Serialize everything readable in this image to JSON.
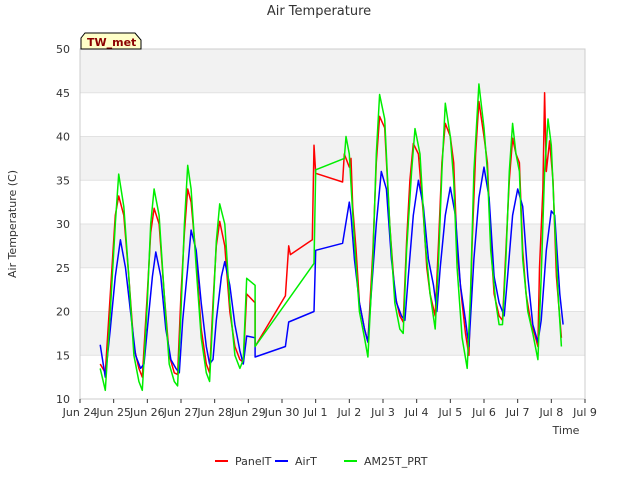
{
  "chart_data": {
    "type": "line",
    "title": "Air Temperature",
    "xlabel": "Time",
    "ylabel": "Air Temperature (C)",
    "badge": "TW_met",
    "ylim": [
      10,
      50
    ],
    "yticks": [
      10,
      15,
      20,
      25,
      30,
      35,
      40,
      45,
      50
    ],
    "xlim": [
      0,
      15
    ],
    "xticks": [
      {
        "v": 0,
        "label": "Jun 24"
      },
      {
        "v": 1,
        "label": "Jun 25"
      },
      {
        "v": 2,
        "label": "Jun 26"
      },
      {
        "v": 3,
        "label": "Jun 27"
      },
      {
        "v": 4,
        "label": "Jun 28"
      },
      {
        "v": 5,
        "label": "Jun 29"
      },
      {
        "v": 6,
        "label": "Jun 30"
      },
      {
        "v": 7,
        "label": "Jul 1"
      },
      {
        "v": 8,
        "label": "Jul 2"
      },
      {
        "v": 9,
        "label": "Jul 3"
      },
      {
        "v": 10,
        "label": "Jul 4"
      },
      {
        "v": 11,
        "label": "Jul 5"
      },
      {
        "v": 12,
        "label": "Jul 6"
      },
      {
        "v": 13,
        "label": "Jul 7"
      },
      {
        "v": 14,
        "label": "Jul 8"
      },
      {
        "v": 15,
        "label": "Jul 9"
      }
    ],
    "grid": true,
    "legend_position": "bottom",
    "colors": {
      "PanelT": "#ff0000",
      "AirT": "#0000ff",
      "AM25T_PRT": "#00ee00"
    },
    "series": [
      {
        "name": "PanelT",
        "points": [
          [
            0.6,
            14.0
          ],
          [
            0.75,
            13.0
          ],
          [
            0.9,
            22.0
          ],
          [
            1.05,
            31.0
          ],
          [
            1.15,
            33.2
          ],
          [
            1.3,
            31.0
          ],
          [
            1.45,
            24.0
          ],
          [
            1.6,
            16.0
          ],
          [
            1.75,
            13.5
          ],
          [
            1.85,
            12.5
          ],
          [
            2.0,
            22.0
          ],
          [
            2.1,
            29.0
          ],
          [
            2.2,
            31.8
          ],
          [
            2.35,
            30.0
          ],
          [
            2.5,
            22.0
          ],
          [
            2.65,
            15.0
          ],
          [
            2.8,
            13.0
          ],
          [
            2.9,
            12.8
          ],
          [
            3.0,
            22.0
          ],
          [
            3.1,
            29.0
          ],
          [
            3.2,
            34.0
          ],
          [
            3.3,
            32.5
          ],
          [
            3.45,
            26.0
          ],
          [
            3.6,
            18.0
          ],
          [
            3.75,
            14.0
          ],
          [
            3.85,
            13.0
          ],
          [
            3.95,
            21.0
          ],
          [
            4.05,
            27.5
          ],
          [
            4.15,
            30.3
          ],
          [
            4.3,
            27.5
          ],
          [
            4.45,
            20.0
          ],
          [
            4.6,
            16.0
          ],
          [
            4.75,
            14.5
          ],
          [
            4.85,
            14.2
          ],
          [
            4.95,
            22.0
          ],
          [
            5.2,
            21.0
          ],
          [
            5.2,
            16.0
          ],
          [
            6.1,
            21.8
          ],
          [
            6.2,
            27.5
          ],
          [
            6.25,
            26.5
          ],
          [
            6.9,
            28.2
          ],
          [
            6.95,
            39.0
          ],
          [
            7.0,
            35.8
          ],
          [
            7.8,
            34.8
          ],
          [
            7.85,
            38.0
          ],
          [
            8.0,
            36.5
          ],
          [
            8.05,
            37.5
          ],
          [
            8.1,
            32.0
          ],
          [
            8.2,
            27.0
          ],
          [
            8.3,
            21.0
          ],
          [
            8.45,
            18.0
          ],
          [
            8.55,
            16.5
          ],
          [
            8.7,
            27.0
          ],
          [
            8.8,
            37.0
          ],
          [
            8.9,
            42.3
          ],
          [
            9.05,
            41.0
          ],
          [
            9.2,
            30.0
          ],
          [
            9.35,
            22.0
          ],
          [
            9.5,
            19.5
          ],
          [
            9.6,
            18.8
          ],
          [
            9.7,
            28.0
          ],
          [
            9.8,
            35.0
          ],
          [
            9.9,
            39.2
          ],
          [
            10.05,
            38.0
          ],
          [
            10.2,
            31.0
          ],
          [
            10.3,
            25.0
          ],
          [
            10.4,
            22.0
          ],
          [
            10.55,
            19.5
          ],
          [
            10.65,
            28.0
          ],
          [
            10.75,
            37.0
          ],
          [
            10.85,
            41.5
          ],
          [
            11.0,
            40.0
          ],
          [
            11.1,
            37.0
          ],
          [
            11.2,
            27.0
          ],
          [
            11.35,
            21.0
          ],
          [
            11.45,
            17.5
          ],
          [
            11.55,
            15.0
          ],
          [
            11.65,
            28.0
          ],
          [
            11.75,
            38.0
          ],
          [
            11.85,
            44.0
          ],
          [
            12.0,
            40.0
          ],
          [
            12.1,
            37.0
          ],
          [
            12.2,
            28.0
          ],
          [
            12.3,
            22.0
          ],
          [
            12.45,
            19.5
          ],
          [
            12.55,
            19.0
          ],
          [
            12.65,
            27.0
          ],
          [
            12.75,
            35.0
          ],
          [
            12.85,
            39.8
          ],
          [
            12.95,
            38.0
          ],
          [
            13.05,
            37.0
          ],
          [
            13.15,
            27.0
          ],
          [
            13.25,
            22.0
          ],
          [
            13.4,
            18.5
          ],
          [
            13.5,
            17.5
          ],
          [
            13.6,
            16.0
          ],
          [
            13.65,
            25.0
          ],
          [
            13.75,
            34.0
          ],
          [
            13.8,
            45.0
          ],
          [
            13.85,
            36.0
          ],
          [
            13.95,
            39.5
          ],
          [
            14.05,
            35.0
          ],
          [
            14.15,
            24.0
          ],
          [
            14.3,
            17.0
          ]
        ]
      },
      {
        "name": "AirT",
        "points": [
          [
            0.6,
            16.2
          ],
          [
            0.75,
            12.5
          ],
          [
            0.9,
            18.0
          ],
          [
            1.05,
            24.0
          ],
          [
            1.2,
            28.2
          ],
          [
            1.35,
            25.0
          ],
          [
            1.5,
            20.0
          ],
          [
            1.65,
            15.0
          ],
          [
            1.8,
            13.5
          ],
          [
            1.9,
            14.0
          ],
          [
            2.05,
            20.0
          ],
          [
            2.15,
            24.0
          ],
          [
            2.25,
            26.8
          ],
          [
            2.4,
            24.0
          ],
          [
            2.55,
            18.0
          ],
          [
            2.7,
            14.5
          ],
          [
            2.85,
            13.5
          ],
          [
            2.95,
            13.0
          ],
          [
            3.05,
            19.0
          ],
          [
            3.2,
            25.0
          ],
          [
            3.3,
            29.3
          ],
          [
            3.45,
            27.0
          ],
          [
            3.6,
            21.0
          ],
          [
            3.75,
            16.0
          ],
          [
            3.85,
            14.0
          ],
          [
            3.95,
            14.5
          ],
          [
            4.05,
            19.0
          ],
          [
            4.2,
            24.0
          ],
          [
            4.3,
            25.7
          ],
          [
            4.45,
            23.0
          ],
          [
            4.6,
            18.5
          ],
          [
            4.75,
            15.5
          ],
          [
            4.85,
            14.0
          ],
          [
            4.95,
            17.2
          ],
          [
            5.2,
            17.0
          ],
          [
            5.2,
            14.8
          ],
          [
            6.1,
            16.0
          ],
          [
            6.2,
            18.8
          ],
          [
            6.95,
            20.0
          ],
          [
            7.0,
            27.0
          ],
          [
            7.8,
            27.8
          ],
          [
            7.85,
            29.0
          ],
          [
            8.0,
            32.5
          ],
          [
            8.05,
            31.0
          ],
          [
            8.15,
            26.0
          ],
          [
            8.3,
            21.0
          ],
          [
            8.45,
            18.0
          ],
          [
            8.55,
            16.5
          ],
          [
            8.65,
            22.0
          ],
          [
            8.8,
            30.0
          ],
          [
            8.95,
            36.0
          ],
          [
            9.1,
            34.0
          ],
          [
            9.25,
            26.0
          ],
          [
            9.4,
            21.0
          ],
          [
            9.55,
            19.5
          ],
          [
            9.65,
            19.0
          ],
          [
            9.75,
            24.0
          ],
          [
            9.9,
            31.0
          ],
          [
            10.05,
            35.0
          ],
          [
            10.2,
            32.0
          ],
          [
            10.35,
            26.0
          ],
          [
            10.5,
            23.0
          ],
          [
            10.6,
            20.0
          ],
          [
            10.7,
            25.0
          ],
          [
            10.85,
            31.0
          ],
          [
            11.0,
            34.2
          ],
          [
            11.15,
            31.0
          ],
          [
            11.3,
            23.0
          ],
          [
            11.45,
            19.0
          ],
          [
            11.55,
            16.0
          ],
          [
            11.7,
            26.0
          ],
          [
            11.85,
            33.0
          ],
          [
            12.0,
            36.5
          ],
          [
            12.15,
            33.0
          ],
          [
            12.3,
            24.0
          ],
          [
            12.45,
            21.0
          ],
          [
            12.6,
            19.5
          ],
          [
            12.7,
            24.0
          ],
          [
            12.85,
            31.0
          ],
          [
            13.0,
            34.0
          ],
          [
            13.15,
            32.0
          ],
          [
            13.3,
            24.0
          ],
          [
            13.45,
            18.5
          ],
          [
            13.6,
            16.5
          ],
          [
            13.7,
            19.0
          ],
          [
            13.85,
            27.0
          ],
          [
            14.0,
            31.5
          ],
          [
            14.1,
            31.0
          ],
          [
            14.25,
            22.0
          ],
          [
            14.35,
            18.5
          ]
        ]
      },
      {
        "name": "AM25T_PRT",
        "points": [
          [
            0.6,
            13.5
          ],
          [
            0.75,
            11.0
          ],
          [
            0.9,
            20.0
          ],
          [
            1.05,
            30.0
          ],
          [
            1.15,
            35.7
          ],
          [
            1.3,
            32.0
          ],
          [
            1.45,
            24.0
          ],
          [
            1.6,
            15.0
          ],
          [
            1.75,
            12.0
          ],
          [
            1.85,
            11.0
          ],
          [
            2.0,
            21.0
          ],
          [
            2.1,
            30.0
          ],
          [
            2.2,
            34.0
          ],
          [
            2.35,
            31.0
          ],
          [
            2.5,
            22.0
          ],
          [
            2.65,
            14.0
          ],
          [
            2.8,
            12.0
          ],
          [
            2.9,
            11.5
          ],
          [
            3.0,
            20.0
          ],
          [
            3.1,
            30.0
          ],
          [
            3.2,
            36.7
          ],
          [
            3.3,
            34.0
          ],
          [
            3.45,
            25.0
          ],
          [
            3.6,
            17.0
          ],
          [
            3.75,
            13.0
          ],
          [
            3.85,
            12.0
          ],
          [
            3.95,
            20.0
          ],
          [
            4.05,
            28.0
          ],
          [
            4.15,
            32.3
          ],
          [
            4.3,
            30.0
          ],
          [
            4.45,
            21.0
          ],
          [
            4.6,
            15.0
          ],
          [
            4.75,
            13.5
          ],
          [
            4.85,
            14.5
          ],
          [
            4.95,
            23.8
          ],
          [
            5.2,
            23.0
          ],
          [
            5.2,
            16.0
          ],
          [
            6.95,
            25.5
          ],
          [
            7.0,
            36.2
          ],
          [
            7.85,
            37.5
          ],
          [
            7.9,
            40.0
          ],
          [
            8.0,
            38.0
          ],
          [
            8.05,
            34.5
          ],
          [
            8.15,
            28.0
          ],
          [
            8.3,
            20.0
          ],
          [
            8.45,
            17.0
          ],
          [
            8.55,
            14.8
          ],
          [
            8.7,
            26.0
          ],
          [
            8.8,
            38.0
          ],
          [
            8.9,
            44.8
          ],
          [
            9.05,
            42.0
          ],
          [
            9.2,
            30.0
          ],
          [
            9.35,
            21.0
          ],
          [
            9.5,
            18.0
          ],
          [
            9.6,
            17.5
          ],
          [
            9.7,
            27.0
          ],
          [
            9.85,
            36.0
          ],
          [
            9.95,
            40.9
          ],
          [
            10.1,
            38.0
          ],
          [
            10.25,
            28.0
          ],
          [
            10.4,
            22.0
          ],
          [
            10.55,
            18.0
          ],
          [
            10.65,
            26.0
          ],
          [
            10.75,
            36.0
          ],
          [
            10.85,
            43.8
          ],
          [
            11.0,
            40.0
          ],
          [
            11.1,
            35.0
          ],
          [
            11.2,
            25.0
          ],
          [
            11.35,
            17.0
          ],
          [
            11.5,
            13.5
          ],
          [
            11.6,
            22.0
          ],
          [
            11.7,
            36.0
          ],
          [
            11.85,
            46.0
          ],
          [
            12.0,
            41.0
          ],
          [
            12.1,
            36.0
          ],
          [
            12.2,
            27.0
          ],
          [
            12.35,
            21.0
          ],
          [
            12.45,
            18.5
          ],
          [
            12.55,
            18.5
          ],
          [
            12.65,
            26.0
          ],
          [
            12.75,
            36.0
          ],
          [
            12.85,
            41.5
          ],
          [
            12.95,
            38.0
          ],
          [
            13.05,
            36.0
          ],
          [
            13.15,
            26.0
          ],
          [
            13.3,
            20.0
          ],
          [
            13.45,
            17.5
          ],
          [
            13.6,
            14.5
          ],
          [
            13.7,
            24.0
          ],
          [
            13.8,
            36.0
          ],
          [
            13.9,
            42.0
          ],
          [
            14.0,
            39.0
          ],
          [
            14.1,
            30.0
          ],
          [
            14.2,
            22.0
          ],
          [
            14.3,
            16.0
          ]
        ]
      }
    ]
  }
}
